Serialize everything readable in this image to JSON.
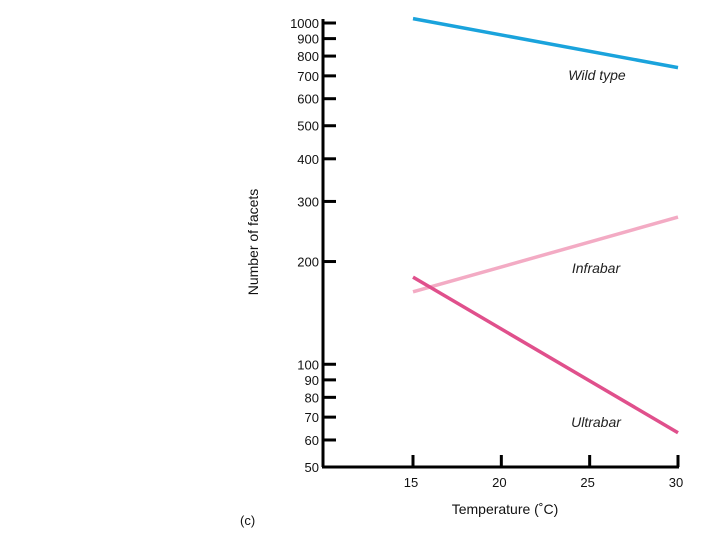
{
  "chart_data": {
    "type": "line",
    "title": "",
    "panel_label": "(c)",
    "xlabel": "Temperature (˚C)",
    "ylabel": "Number of facets",
    "y_scale": "log",
    "xlim": [
      10,
      30
    ],
    "ylim": [
      50,
      1100
    ],
    "x_ticks": [
      15,
      20,
      25,
      30
    ],
    "x_tick_labels": [
      "15",
      "20",
      "25",
      "30"
    ],
    "y_ticks": [
      50,
      60,
      70,
      80,
      90,
      100,
      200,
      300,
      400,
      500,
      600,
      700,
      800,
      900,
      1000
    ],
    "y_tick_labels": [
      "50",
      "60",
      "70",
      "80",
      "90",
      "100",
      "200",
      "300",
      "400",
      "500",
      "600",
      "700",
      "800",
      "900",
      "1000"
    ],
    "series": [
      {
        "name": "Wild type",
        "color": "#1aa3dc",
        "x": [
          15,
          30
        ],
        "y": [
          1030,
          740
        ]
      },
      {
        "name": "Infrabar",
        "color": "#f3abc4",
        "x": [
          15,
          30
        ],
        "y": [
          163,
          270
        ]
      },
      {
        "name": "Ultrabar",
        "color": "#e0508c",
        "x": [
          15,
          30
        ],
        "y": [
          180,
          63
        ]
      }
    ],
    "legend": "inline labels next to lines"
  }
}
